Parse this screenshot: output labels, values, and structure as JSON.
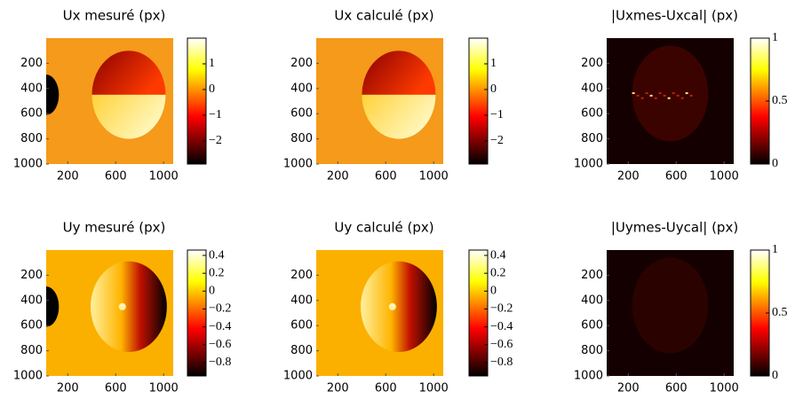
{
  "chart_data": [
    {
      "type": "image",
      "title": "Ux mesuré (px)",
      "colormap": "hot",
      "xlim": [
        20,
        1080
      ],
      "ylim": [
        1000,
        0
      ],
      "xticks": [
        200,
        600,
        1000
      ],
      "yticks": [
        200,
        400,
        600,
        800,
        1000
      ],
      "clim": [
        -2.9,
        2
      ],
      "cticks": [
        1,
        0,
        {
          "value": -1,
          "label": "−1"
        },
        {
          "value": -2,
          "label": "−2"
        }
      ]
    },
    {
      "type": "image",
      "title": "Ux calculé (px)",
      "colormap": "hot",
      "xlim": [
        20,
        1080
      ],
      "ylim": [
        1000,
        0
      ],
      "xticks": [
        200,
        600,
        1000
      ],
      "yticks": [
        200,
        400,
        600,
        800,
        1000
      ],
      "clim": [
        -2.9,
        2
      ],
      "cticks": [
        1,
        0,
        {
          "value": -1,
          "label": "−1"
        },
        {
          "value": -2,
          "label": "−2"
        }
      ]
    },
    {
      "type": "image",
      "title": "|Uxmes-Uxcal| (px)",
      "colormap": "hot",
      "xlim": [
        20,
        1080
      ],
      "ylim": [
        1000,
        0
      ],
      "xticks": [
        200,
        600,
        1000
      ],
      "yticks": [
        200,
        400,
        600,
        800,
        1000
      ],
      "clim": [
        0,
        1
      ],
      "cticks": [
        1,
        0.5,
        0
      ]
    },
    {
      "type": "image",
      "title": "Uy mesuré (px)",
      "colormap": "hot",
      "xlim": [
        20,
        1080
      ],
      "ylim": [
        1000,
        0
      ],
      "xticks": [
        200,
        600,
        1000
      ],
      "yticks": [
        200,
        400,
        600,
        800,
        1000
      ],
      "clim": [
        -0.95,
        0.46
      ],
      "cticks": [
        0.4,
        0.2,
        0,
        {
          "value": -0.2,
          "label": "−0.2"
        },
        {
          "value": -0.4,
          "label": "−0.4"
        },
        {
          "value": -0.6,
          "label": "−0.6"
        },
        {
          "value": -0.8,
          "label": "−0.8"
        }
      ]
    },
    {
      "type": "image",
      "title": "Uy calculé (px)",
      "colormap": "hot",
      "xlim": [
        20,
        1080
      ],
      "ylim": [
        1000,
        0
      ],
      "xticks": [
        200,
        600,
        1000
      ],
      "yticks": [
        200,
        400,
        600,
        800,
        1000
      ],
      "clim": [
        -0.95,
        0.46
      ],
      "cticks": [
        0.4,
        0.2,
        0,
        {
          "value": -0.2,
          "label": "−0.2"
        },
        {
          "value": -0.4,
          "label": "−0.4"
        },
        {
          "value": -0.6,
          "label": "−0.6"
        },
        {
          "value": -0.8,
          "label": "−0.8"
        }
      ]
    },
    {
      "type": "image",
      "title": "|Uymes-Uycal| (px)",
      "colormap": "hot",
      "xlim": [
        20,
        1080
      ],
      "ylim": [
        1000,
        0
      ],
      "xticks": [
        200,
        600,
        1000
      ],
      "yticks": [
        200,
        400,
        600,
        800,
        1000
      ],
      "clim": [
        0,
        1
      ],
      "cticks": [
        1,
        0.5,
        0
      ]
    }
  ]
}
